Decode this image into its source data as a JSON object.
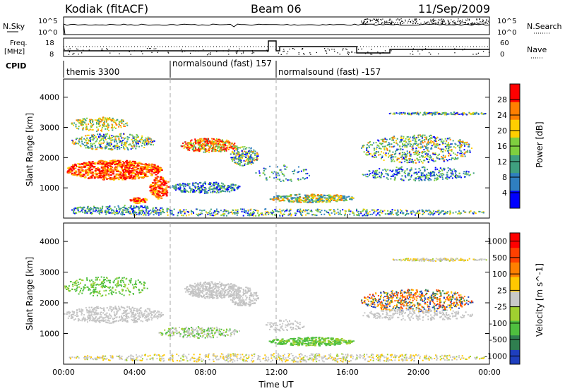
{
  "header": {
    "station": "Kodiak (fitACF)",
    "beam": "Beam 06",
    "date": "11/Sep/2009"
  },
  "top_panels": {
    "nsky_label": "N.Sky",
    "nsky_ticks_left": [
      "10^5",
      "10^0"
    ],
    "nsearch_ticks_right": [
      "10^5",
      "10^0"
    ],
    "nsearch_label": "N.Search",
    "freq_label_line1": "Freq.",
    "freq_label_line2": "[MHz]",
    "freq_ticks_left": [
      "18",
      "8"
    ],
    "nave_ticks_right": [
      "60",
      "0"
    ],
    "nave_label": "Nave",
    "cpid_label": "CPID",
    "cpid_segments": [
      "themis 3300",
      "normalsound (fast) 157",
      "normalsound (fast) -157"
    ]
  },
  "chart_data": [
    {
      "type": "heatmap",
      "title": "",
      "xlabel": "",
      "ylabel": "Slant Range [km]",
      "x_ticks": [
        "00:00",
        "04:00",
        "08:00",
        "12:00",
        "16:00",
        "20:00",
        "00:00"
      ],
      "y_ticks": [
        "1000",
        "2000",
        "3000",
        "4000"
      ],
      "colorbar_label": "Power [dB]",
      "colorbar_ticks": [
        "4",
        "8",
        "12",
        "16",
        "20",
        "24",
        "28"
      ],
      "colors": [
        "#0000ff",
        "#2f7fbf",
        "#3f9f7f",
        "#7fcf3f",
        "#ffcf00",
        "#ff7f00",
        "#ff0000"
      ]
    },
    {
      "type": "heatmap",
      "title": "",
      "xlabel": "Time UT",
      "ylabel": "Slant Range [km]",
      "x_ticks": [
        "00:00",
        "04:00",
        "08:00",
        "12:00",
        "16:00",
        "20:00",
        "00:00"
      ],
      "y_ticks": [
        "1000",
        "2000",
        "3000",
        "4000"
      ],
      "colorbar_label": "Velocity [m s^-1]",
      "colorbar_ticks": [
        "1000",
        "500",
        "100",
        "25",
        "-25",
        "-100",
        "-500",
        "-1000"
      ],
      "colors": [
        "#1f3fbf",
        "#2f7f4f",
        "#4fbf3f",
        "#a0d030",
        "#c8c8c8",
        "#ffc800",
        "#ff8000",
        "#ff4000",
        "#ff0000"
      ]
    }
  ]
}
